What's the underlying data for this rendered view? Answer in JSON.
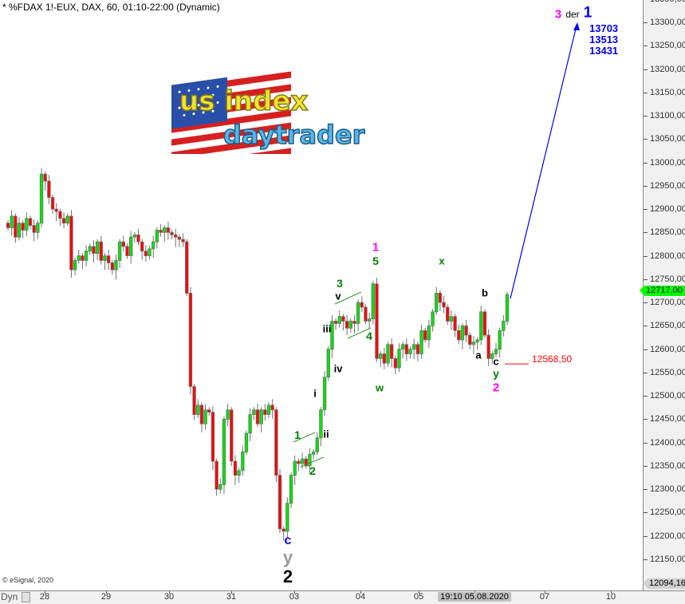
{
  "header": {
    "title": "* %FDAX 1!-EUX, DAX, 60, 01:10-22:00 (Dynamic)"
  },
  "footer": {
    "copyright": "© eSignal, 2020",
    "dyn_label": "Dyn",
    "lock_icon": "lock-icon"
  },
  "logo": {
    "line1": "us index",
    "line2": "daytrader"
  },
  "colors": {
    "up": "#00e600",
    "down": "#ff0000",
    "outline": "#707070",
    "arrow": "#0000ff",
    "stop": "#ff0000",
    "wave_green": "#008000",
    "magenta": "#ff00ff",
    "blue": "#0000ff"
  },
  "chart_data": {
    "type": "candlestick",
    "title": "* %FDAX 1!-EUX, DAX, 60, 01:10-22:00 (Dynamic)",
    "ylim": [
      12094.16,
      13350
    ],
    "y_ticks": [
      "13350,00",
      "13300,00",
      "13250,00",
      "13200,00",
      "13150,00",
      "13100,00",
      "13050,00",
      "13000,00",
      "12950,00",
      "12900,00",
      "12850,00",
      "12800,00",
      "12750,00",
      "12700,00",
      "12650,00",
      "12600,00",
      "12550,00",
      "12500,00",
      "12450,00",
      "12400,00",
      "12350,00",
      "12300,00",
      "12250,00",
      "12200,00",
      "12150,00"
    ],
    "x_ticks": [
      "28",
      "29",
      "30",
      "31",
      "03",
      "04",
      "05",
      "19:10 05.08.2020",
      "07",
      "10"
    ],
    "current_price": "12717,00",
    "axis_low": "12094,16",
    "closes": [
      12860,
      12885,
      12840,
      12870,
      12855,
      12880,
      12865,
      12850,
      12870,
      12975,
      12960,
      12925,
      12900,
      12895,
      12880,
      12870,
      12885,
      12770,
      12790,
      12800,
      12790,
      12810,
      12820,
      12805,
      12830,
      12790,
      12800,
      12785,
      12770,
      12790,
      12830,
      12820,
      12800,
      12840,
      12845,
      12830,
      12810,
      12800,
      12815,
      12830,
      12855,
      12850,
      12860,
      12850,
      12845,
      12840,
      12835,
      12830,
      12720,
      12520,
      12460,
      12480,
      12440,
      12470,
      12465,
      12360,
      12300,
      12310,
      12450,
      12470,
      12360,
      12330,
      12340,
      12380,
      12420,
      12460,
      12470,
      12440,
      12470,
      12460,
      12480,
      12470,
      12330,
      12215,
      12210,
      12270,
      12330,
      12360,
      12355,
      12365,
      12350,
      12375,
      12380,
      12410,
      12470,
      12540,
      12600,
      12660,
      12655,
      12670,
      12660,
      12645,
      12660,
      12655,
      12700,
      12690,
      12660,
      12665,
      12740,
      12580,
      12590,
      12570,
      12610,
      12580,
      12560,
      12600,
      12610,
      12590,
      12600,
      12610,
      12590,
      12640,
      12620,
      12650,
      12680,
      12720,
      12700,
      12690,
      12660,
      12670,
      12640,
      12620,
      12650,
      12630,
      12610,
      12615,
      12620,
      12680,
      12630,
      12580,
      12590,
      12600,
      12640,
      12660,
      12717
    ],
    "stop_level": {
      "value": 12568.5,
      "label": "12568,50"
    },
    "projection": {
      "from": 12717,
      "to": 13300
    },
    "targets": [
      "13703",
      "13513",
      "13431"
    ],
    "target_label": {
      "wave": "3",
      "word": "der",
      "degree": "1"
    },
    "wave_labels": [
      {
        "text": "1",
        "color": "magenta"
      },
      {
        "text": "5",
        "color": "green"
      },
      {
        "text": "3",
        "color": "green"
      },
      {
        "text": "v",
        "color": "black"
      },
      {
        "text": "iii",
        "color": "black"
      },
      {
        "text": "4",
        "color": "green"
      },
      {
        "text": "iv",
        "color": "black"
      },
      {
        "text": "w",
        "color": "green"
      },
      {
        "text": "x",
        "color": "green"
      },
      {
        "text": "b",
        "color": "black"
      },
      {
        "text": "a",
        "color": "black"
      },
      {
        "text": "c",
        "color": "black"
      },
      {
        "text": "y",
        "color": "green"
      },
      {
        "text": "2",
        "color": "magenta"
      },
      {
        "text": "i",
        "color": "black"
      },
      {
        "text": "ii",
        "color": "black"
      },
      {
        "text": "1",
        "color": "green"
      },
      {
        "text": "2",
        "color": "green"
      },
      {
        "text": "c",
        "color": "blue"
      },
      {
        "text": "y",
        "color": "gray"
      },
      {
        "text": "2",
        "color": "black"
      }
    ]
  }
}
